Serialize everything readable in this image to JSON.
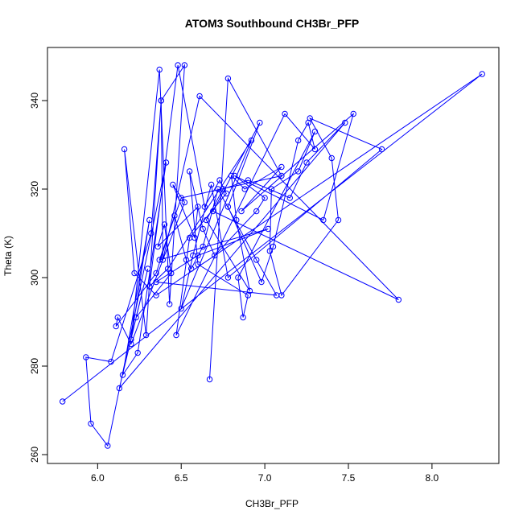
{
  "chart_data": {
    "type": "line",
    "title": "ATOM3 Southbound CH3Br_PFP",
    "xlabel": "CH3Br_PFP",
    "ylabel": "Theta (K)",
    "xlim": [
      5.7,
      8.4
    ],
    "ylim": [
      258,
      352
    ],
    "xticks": [
      6.0,
      6.5,
      7.0,
      7.5,
      8.0
    ],
    "xtick_labels": [
      "6.0",
      "6.5",
      "7.0",
      "7.5",
      "8.0"
    ],
    "yticks": [
      260,
      280,
      300,
      320,
      340
    ],
    "ytick_labels": [
      "260",
      "280",
      "300",
      "320",
      "340"
    ],
    "grid": false,
    "legend": "none",
    "color": "#0000ff",
    "marker": "open-circle",
    "series": [
      {
        "x": [
          5.79,
          8.3,
          6.35,
          6.22,
          6.16,
          6.29,
          6.38,
          6.32,
          6.08,
          5.93,
          5.96,
          6.06,
          6.41,
          6.24,
          6.15,
          6.31,
          6.2,
          6.37,
          6.43,
          6.52,
          6.38,
          6.39,
          6.61,
          7.8,
          6.69,
          6.97,
          6.78,
          6.98,
          7.05,
          7.2,
          7.26,
          7.3,
          7.12,
          6.47,
          6.55,
          6.77,
          6.73,
          6.64,
          6.48,
          6.31,
          6.42,
          6.92,
          6.5,
          6.57,
          6.68,
          6.78,
          7.7,
          7.27,
          7.4,
          7.44,
          7.1,
          7.03,
          7.04,
          7.2,
          7.3,
          6.84,
          6.87,
          6.9,
          6.6,
          6.55,
          6.63,
          6.7,
          6.95,
          7.0,
          6.82,
          7.35,
          7.53,
          6.86,
          7.1,
          6.88,
          6.8,
          6.83,
          6.91,
          6.65,
          6.75,
          6.9,
          7.15,
          7.25,
          7.48,
          6.13,
          6.3,
          6.23,
          6.44,
          6.4,
          6.36,
          6.6,
          6.58,
          6.45,
          6.52,
          6.2,
          6.12,
          6.11,
          6.35,
          6.46,
          6.53,
          6.56,
          6.63,
          6.72,
          6.95,
          7.07,
          6.35,
          6.6,
          7.02,
          6.37,
          6.5,
          7.1,
          6.78,
          6.67
        ],
        "y": [
          272,
          346,
          296,
          301,
          329,
          287,
          340,
          310,
          281,
          282,
          267,
          262,
          326,
          283,
          278,
          313,
          286,
          347,
          294,
          348,
          340,
          304,
          341,
          295,
          315,
          335,
          316,
          299,
          307,
          331,
          335,
          329,
          337,
          287,
          309,
          319,
          322,
          316,
          348,
          298,
          302,
          331,
          293,
          305,
          321,
          300,
          329,
          336,
          327,
          313,
          296,
          306,
          320,
          324,
          333,
          300,
          291,
          296,
          303,
          324,
          311,
          305,
          315,
          318,
          323,
          313,
          337,
          315,
          325,
          320,
          323,
          313,
          297,
          313,
          320,
          322,
          318,
          326,
          335,
          275,
          302,
          291,
          301,
          312,
          307,
          316,
          309,
          321,
          317,
          285,
          291,
          289,
          301,
          314,
          304,
          302,
          307,
          320,
          304,
          296,
          299,
          305,
          311,
          304,
          318,
          323,
          345,
          277
        ]
      }
    ]
  }
}
